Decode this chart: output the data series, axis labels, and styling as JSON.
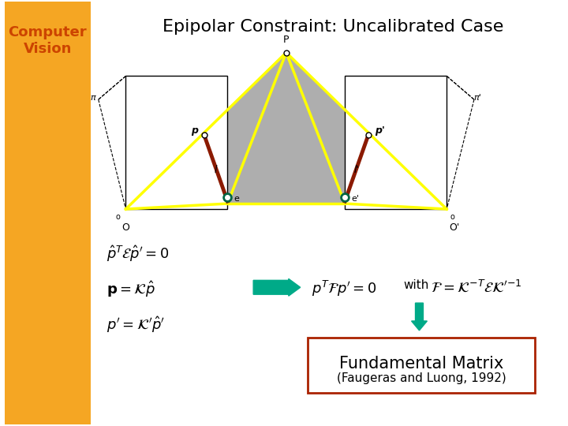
{
  "title": "Epipolar Constraint: Uncalibrated Case",
  "sidebar_text": "Computer\nVision",
  "sidebar_color": "#F5A623",
  "title_color": "#000000",
  "sidebar_text_color": "#CC4400",
  "bg_color": "#FFFFFF",
  "eq1": "$\\hat{p}^T \\mathcal{E} \\hat{p}' = 0$",
  "eq2_left": "$\\mathbf{p} = \\mathcal{K}\\hat{p}$",
  "eq2_right": "$p^T \\mathcal{F} p' = 0$",
  "eq2_with": "with",
  "eq2_F": "$\\mathcal{F} = \\mathcal{K}^{-T} \\mathcal{E} \\mathcal{K}'^{-1}$",
  "eq3": "$p' = \\mathcal{K}'\\hat{p}'$",
  "box_line1": "Fundamental Matrix",
  "box_line2": "(Faugeras and Luong, 1992)",
  "arrow_color": "#00AA88",
  "box_border_color": "#AA2200",
  "yellow_color": "#FFFF00",
  "gray_fill": "#A0A0A0",
  "dark_red": "#8B1A00"
}
